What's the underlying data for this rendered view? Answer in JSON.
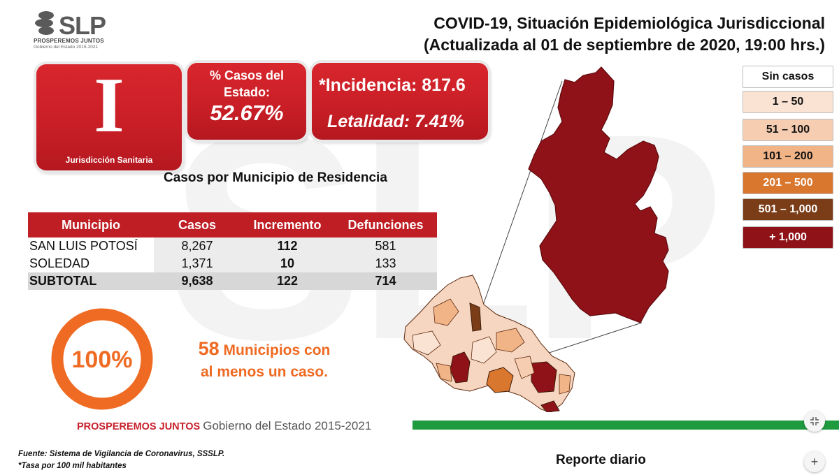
{
  "logo": {
    "brand": "SLP",
    "slogan": "PROSPEREMOS JUNTOS",
    "gov": "Gobierno del Estado 2015-2021"
  },
  "title": {
    "line1": "COVID-19, Situación Epidemiológica Jurisdiccional",
    "line2": "(Actualizada al 01 de septiembre de 2020, 19:00 hrs.)"
  },
  "jurisdiction": {
    "numeral": "I",
    "label": "Jurisdicción Sanitaria"
  },
  "state_cases": {
    "label": "% Casos del Estado:",
    "value": "52.67%"
  },
  "rates": {
    "incidence": "*Incidencia: 817.6",
    "lethality": "Letalidad: 7.41%"
  },
  "table": {
    "title": "Casos por Municipio  de Residencia",
    "headers": [
      "Municipio",
      "Casos",
      "Incremento",
      "Defunciones"
    ],
    "rows": [
      [
        "SAN LUIS POTOSÍ",
        "8,267",
        "112",
        "581"
      ],
      [
        "SOLEDAD",
        "1,371",
        "10",
        "133"
      ]
    ],
    "total": [
      "SUBTOTAL",
      "9,638",
      "122",
      "714"
    ]
  },
  "coverage": {
    "percent": "100%",
    "percent_value": 100,
    "count": "58",
    "text_a": "Municipios con",
    "text_b": "al menos un caso."
  },
  "legend": [
    {
      "label": "Sin casos",
      "color": "#ffffff",
      "text_color": "#111111"
    },
    {
      "label": "1 – 50",
      "color": "#fbe3d3",
      "text_color": "#111111"
    },
    {
      "label": "51 – 100",
      "color": "#f6cdb0",
      "text_color": "#111111"
    },
    {
      "label": "101 – 200",
      "color": "#f1b487",
      "text_color": "#111111"
    },
    {
      "label": "201 – 500",
      "color": "#d9772f",
      "text_color": "#ffffff"
    },
    {
      "label": "501 – 1,000",
      "color": "#7a3d18",
      "text_color": "#ffffff"
    },
    {
      "label": "+ 1,000",
      "color": "#8f1218",
      "text_color": "#ffffff"
    }
  ],
  "footer": {
    "slogan": "PROSPEREMOS JUNTOS",
    "gov": "Gobierno del Estado 2015-2021",
    "source": "Fuente: Sistema de Vigilancia de Coronavirus, SSSLP.",
    "rate_note": "*Tasa por 100 mil habitantes",
    "daily": "Reporte diario"
  },
  "colors": {
    "brand_red": "#c81e26",
    "orange": "#ef6a22",
    "green": "#1f9a3f"
  },
  "icons": {
    "collapse": "collapse-icon",
    "add": "plus-icon"
  }
}
